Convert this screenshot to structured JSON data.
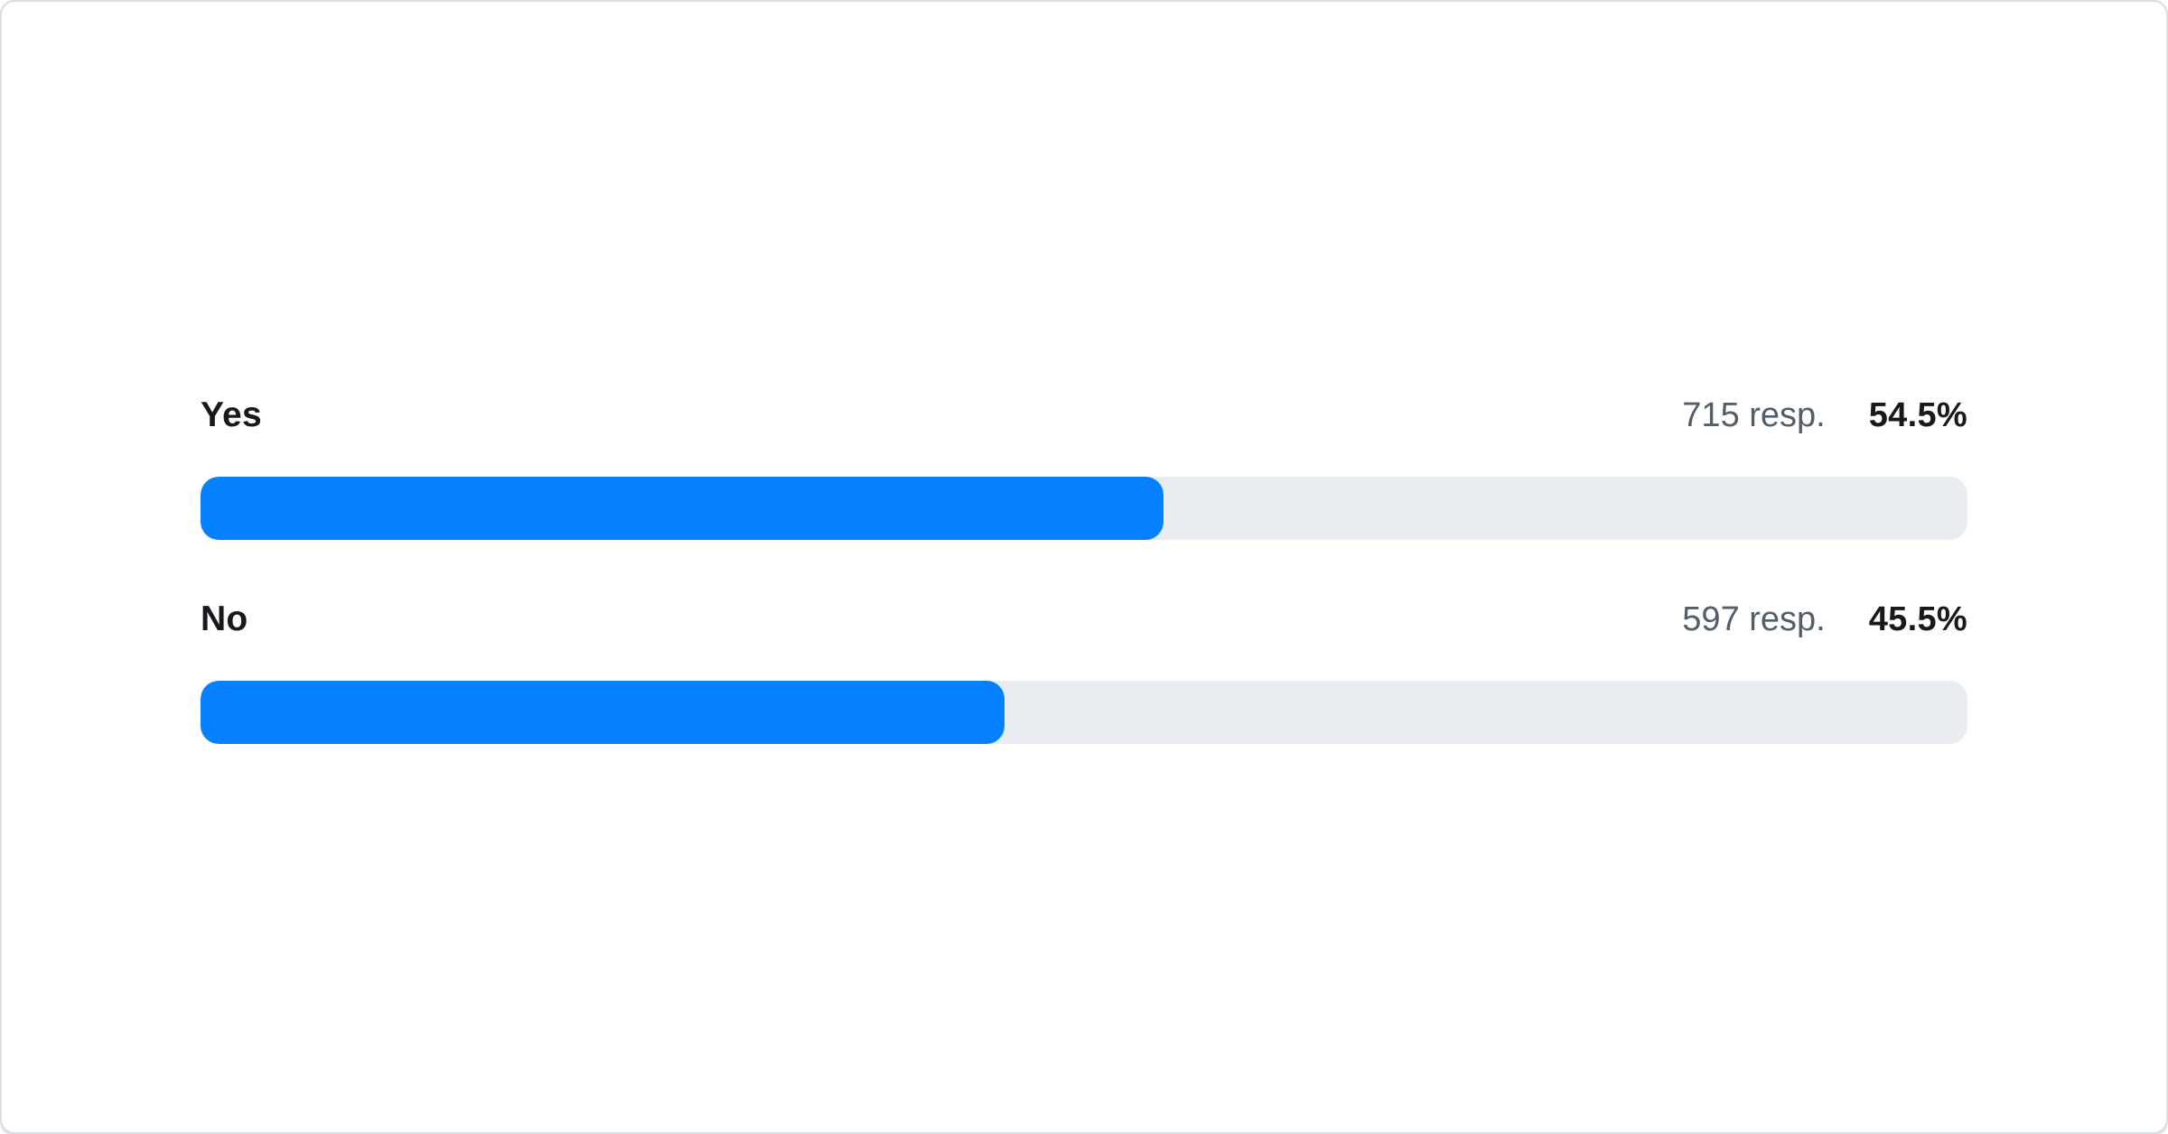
{
  "card": {
    "background": "#ffffff",
    "border_color": "#d9dde2"
  },
  "colors": {
    "bar_fill": "#0580ff",
    "bar_track": "#e9ecf0",
    "label_text": "#17191d",
    "responses_text": "#535e6b",
    "percent_text": "#17191d"
  },
  "poll": {
    "options": [
      {
        "label": "Yes",
        "responses": 715,
        "responses_text": "715 resp.",
        "percent": 54.5,
        "percent_text": "54.5%"
      },
      {
        "label": "No",
        "responses": 597,
        "responses_text": "597 resp.",
        "percent": 45.5,
        "percent_text": "45.5%"
      }
    ]
  },
  "chart_data": {
    "type": "bar",
    "orientation": "horizontal",
    "title": "",
    "xlabel": "",
    "ylabel": "",
    "categories": [
      "Yes",
      "No"
    ],
    "values": [
      54.5,
      45.5
    ],
    "series": [
      {
        "name": "percent_of_responses",
        "values": [
          54.5,
          45.5
        ]
      },
      {
        "name": "responses",
        "values": [
          715,
          597
        ]
      }
    ],
    "value_labels": [
      "54.5%",
      "45.5%"
    ],
    "count_labels": [
      "715 resp.",
      "597 resp."
    ],
    "xlim": [
      0,
      100
    ],
    "grid": false,
    "legend": false
  }
}
